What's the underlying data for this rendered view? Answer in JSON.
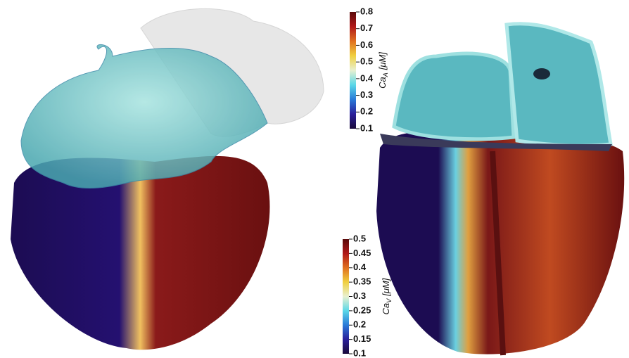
{
  "colorbars": [
    {
      "label": {
        "symbol": "Ca",
        "subscript": "A",
        "unit": "[μM]"
      },
      "lim": [
        0.1,
        0.8
      ],
      "ticks": [
        0.1,
        0.2,
        0.3,
        0.4,
        0.5,
        0.6,
        0.7,
        0.8
      ],
      "colors": [
        "#1a0a3a",
        "#2a1f9a",
        "#2a7ad8",
        "#5ad8e8",
        "#e8f0d0",
        "#f0d040",
        "#e07020",
        "#b01818",
        "#5a0a0a"
      ]
    },
    {
      "label": {
        "symbol": "Ca",
        "subscript": "V",
        "unit": "[μM]"
      },
      "lim": [
        0.1,
        0.5
      ],
      "ticks": [
        0.1,
        0.15,
        0.2,
        0.25,
        0.3,
        0.35,
        0.4,
        0.45,
        0.5
      ],
      "colors": [
        "#1a0a3a",
        "#2a1f9a",
        "#2a7ad8",
        "#5ad8e8",
        "#e8f0d0",
        "#f0d040",
        "#e07020",
        "#b01818",
        "#5a0a0a"
      ]
    }
  ]
}
